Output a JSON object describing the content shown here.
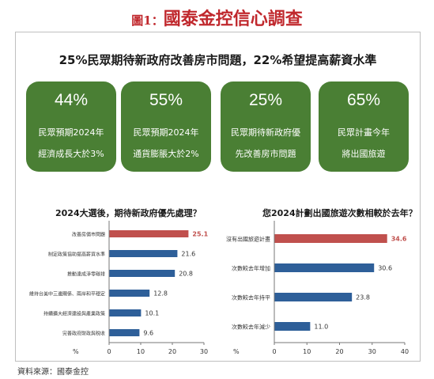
{
  "figure_title": {
    "label": "圖1：",
    "text": "國泰金控信心調查"
  },
  "headline": "25%民眾期待新政府改善房市問題，22%希望提高薪資水準",
  "cards": [
    {
      "pct": "44%",
      "line1": "民眾預期2024年",
      "line2": "經濟成長大於3%"
    },
    {
      "pct": "55%",
      "line1": "民眾預期2024年",
      "line2": "通貨膨脹大於2%"
    },
    {
      "pct": "25%",
      "line1": "民眾期待新政府優",
      "line2": "先改善房市問題"
    },
    {
      "pct": "65%",
      "line1": "民眾計畫今年",
      "line2": "將出國旅遊"
    }
  ],
  "colors": {
    "title_red": "#c0282d",
    "card_green": "#4a7f34",
    "bar_blue": "#2e5f99",
    "bar_red": "#c0504d"
  },
  "chart_data": [
    {
      "type": "bar",
      "orientation": "horizontal",
      "title": "2024大選後，期待新政府優先處理？",
      "categories": [
        "改善房價市問題",
        "制定政策協助提高薪資水準",
        "推動達成淨零碳排",
        "維持台美中三邊關係、兩岸和平穩定",
        "持續擴大經濟建設與產業政策",
        "完善政府財政與稅收"
      ],
      "values": [
        25.1,
        21.6,
        20.8,
        12.8,
        10.1,
        9.6
      ],
      "highlight_index": 0,
      "xlim": [
        0,
        30
      ],
      "xticks": [
        "0",
        "10",
        "20",
        "30"
      ],
      "unit": "%"
    },
    {
      "type": "bar",
      "orientation": "horizontal",
      "title": "您2024計劃出國旅遊次數相較於去年？",
      "categories": [
        "沒有出國旅遊計畫",
        "次數較去年增加",
        "次數較去年持平",
        "次數較去年減少"
      ],
      "values": [
        34.6,
        30.6,
        23.8,
        11.0
      ],
      "value_labels": [
        "34.6",
        "30.6",
        "23.8",
        "11.0"
      ],
      "highlight_index": 0,
      "xlim": [
        0,
        40
      ],
      "xticks": [
        "0",
        "10",
        "20",
        "30",
        "40"
      ],
      "unit": "%"
    }
  ],
  "source": "資料來源：國泰金控"
}
